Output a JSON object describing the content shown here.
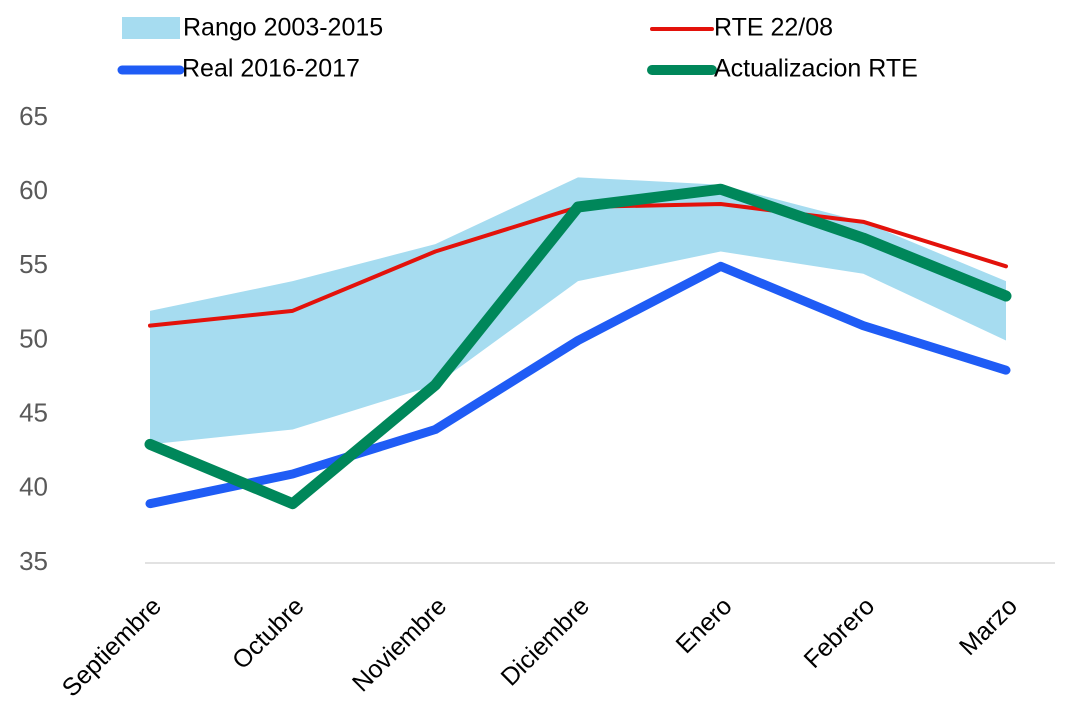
{
  "chart_data": {
    "type": "line",
    "categories": [
      "Septiembre",
      "Octubre",
      "Noviembre",
      "Diciembre",
      "Enero",
      "Febrero",
      "Marzo"
    ],
    "band": {
      "name": "Rango 2003-2015",
      "color": "#a6dcf0",
      "low": [
        43,
        44,
        47,
        54,
        56,
        54.5,
        50
      ],
      "high": [
        52,
        54,
        56.5,
        61,
        60.5,
        58,
        54
      ]
    },
    "series": [
      {
        "name": "RTE 22/08",
        "color": "#e3120b",
        "width": 4,
        "values": [
          51,
          52,
          56,
          59,
          59.2,
          58,
          55
        ]
      },
      {
        "name": "Real 2016-2017",
        "color": "#1f5cf5",
        "width": 9,
        "values": [
          39,
          41,
          44,
          50,
          55,
          51,
          48
        ]
      },
      {
        "name": "Actualizacion RTE",
        "color": "#00875a",
        "width": 11,
        "values": [
          43,
          39,
          47,
          59,
          60.2,
          56.9,
          53
        ]
      }
    ],
    "ylim": [
      35,
      65
    ],
    "yticks": [
      35,
      40,
      45,
      50,
      55,
      60,
      65
    ],
    "legend": "top"
  }
}
